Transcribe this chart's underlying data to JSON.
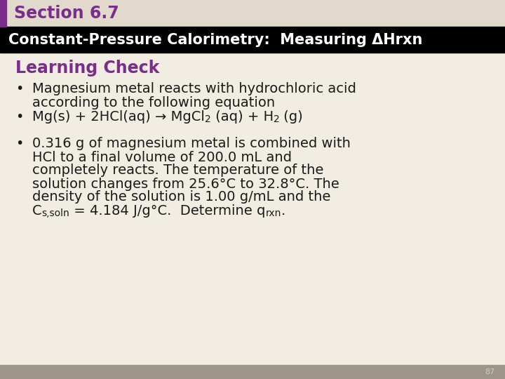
{
  "section_title": "Section 6.7",
  "section_title_color": "#7B2D8B",
  "header_text": "Constant-Pressure Calorimetry:  Measuring ΔHrxn",
  "header_bg": "#000000",
  "header_text_color": "#ffffff",
  "learning_check_text": "Learning Check",
  "learning_check_color": "#7B2D8B",
  "bg_color": "#F2EDE3",
  "section_bar_color": "#7B2D8B",
  "section_bar_bg": "#E0D9CC",
  "footer_bg": "#9E9589",
  "footer_number": "87",
  "bullet1_line1": "Magnesium metal reacts with hydrochloric acid",
  "bullet1_line2": "according to the following equation",
  "bullet2_pre": "Mg(s) + 2HCl(aq) → MgCl",
  "bullet2_sub1": "2",
  "bullet2_mid": " (aq) + H",
  "bullet2_sub2": "2",
  "bullet2_post": " (g)",
  "bullet3_line1": "0.316 g of magnesium metal is combined with",
  "bullet3_line2": "HCl to a final volume of 200.0 mL and",
  "bullet3_line3": "completely reacts. The temperature of the",
  "bullet3_line4": "solution changes from 25.6°C to 32.8°C. The",
  "bullet3_line5": "density of the solution is 1.00 g/mL and the",
  "bullet3_cs": "C",
  "bullet3_cs_sub": "s,soln",
  "bullet3_mid": " = 4.184 J/g°C.  Determine q",
  "bullet3_q_sub": "rxn",
  "bullet3_end": ".",
  "text_color": "#1a1a1a",
  "font_size_section": 17,
  "font_size_header": 15,
  "font_size_learning": 17,
  "font_size_bullet": 14,
  "font_size_sub": 10
}
